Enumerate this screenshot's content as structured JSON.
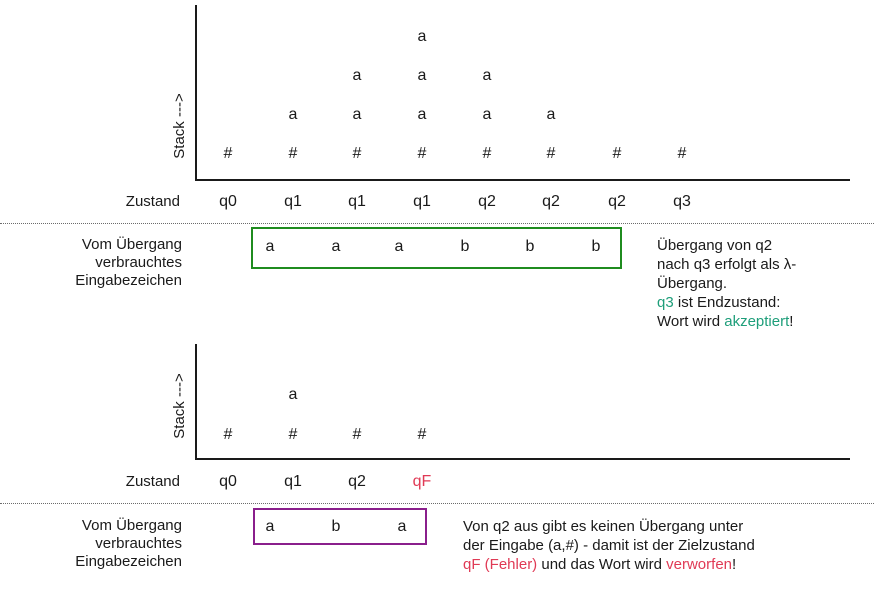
{
  "colors": {
    "accepted_box": "#1f8c1f",
    "rejected_box": "#8a1f8c",
    "accept_text": "#1e9e7a",
    "error_text": "#e03a55"
  },
  "top": {
    "stack_label": "Stack --->",
    "stack_columns": [
      [
        "#"
      ],
      [
        "#",
        "a"
      ],
      [
        "#",
        "a",
        "a"
      ],
      [
        "#",
        "a",
        "a",
        "a"
      ],
      [
        "#",
        "a",
        "a"
      ],
      [
        "#",
        "a"
      ],
      [
        "#"
      ],
      [
        "#"
      ]
    ],
    "state_label": "Zustand",
    "states": [
      "q0",
      "q1",
      "q1",
      "q1",
      "q2",
      "q2",
      "q2",
      "q3"
    ],
    "input_label_lines": [
      "Vom Übergang",
      "verbrauchtes",
      "Eingabezeichen"
    ],
    "inputs": [
      "a",
      "a",
      "a",
      "b",
      "b",
      "b"
    ],
    "note_lines": [
      "Übergang von q2",
      "nach q3 erfolgt als λ-",
      "Übergang."
    ],
    "note_accept": {
      "state": "q3",
      "mid": " ist Endzustand:",
      "pre": "Wort wird ",
      "word": "akzeptiert",
      "post": "!"
    }
  },
  "bottom": {
    "stack_label": "Stack --->",
    "stack_columns": [
      [
        "#"
      ],
      [
        "#",
        "a"
      ],
      [
        "#"
      ],
      [
        "#"
      ]
    ],
    "state_label": "Zustand",
    "states": [
      "q0",
      "q1",
      "q2",
      "qF"
    ],
    "input_label_lines": [
      "Vom Übergang",
      "verbrauchtes",
      "Eingabezeichen"
    ],
    "inputs": [
      "a",
      "b",
      "a"
    ],
    "note_lines": [
      "Von q2 aus gibt es keinen Übergang unter",
      "der Eingabe (a,#) - damit ist der Zielzustand"
    ],
    "note_reject": {
      "state": "qF (Fehler)",
      "mid": " und das Wort wird ",
      "word": "verworfen",
      "post": "!"
    }
  }
}
